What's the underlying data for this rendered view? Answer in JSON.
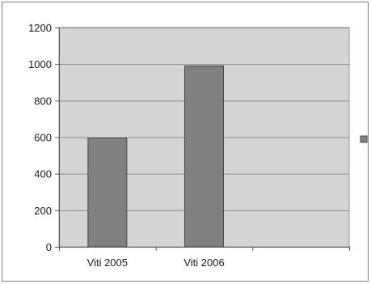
{
  "chart_data": {
    "type": "bar",
    "categories": [
      "Viti 2005",
      "Viti 2006",
      ""
    ],
    "values": [
      595,
      990,
      null
    ],
    "ylim": [
      0,
      1200
    ],
    "yticks": [
      0,
      200,
      400,
      600,
      800,
      1000,
      1200
    ],
    "grid": true,
    "legend": "right",
    "colors": {
      "bar": "#808080",
      "plot_area": "#d4d4d4",
      "gridline": "#8c8c8c"
    }
  }
}
